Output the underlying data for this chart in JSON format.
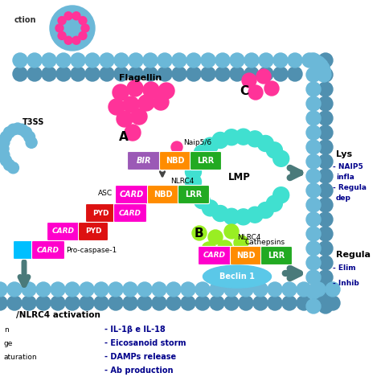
{
  "bg_color": "#ffffff",
  "membrane_color": "#6BB8D8",
  "membrane_dark": "#5090B0",
  "flagellin_color": "#FF3399",
  "cathepsin_color": "#99EE22",
  "lysosome_color": "#40E0D0",
  "arrow_color": "#4a7a7a",
  "text_color": "#00008B",
  "label_color": "#000000",
  "BIR_color": "#9B59B6",
  "NBD_color": "#FF8C00",
  "LRR_color": "#22AA22",
  "CARD_color": "#FF00CC",
  "CARD2_color": "#FF1493",
  "PYD_color": "#DD1111",
  "blue_rect": "#00BFFF",
  "beclin_color": "#5BC8E8",
  "naip_label": "Naip5/6",
  "nlrc4_label": "NLRC4",
  "asc_label": "ASC",
  "procasp_label": "Pro-caspase-1",
  "flagellin_label": "Flagellin",
  "t3ss_label": "T3SS",
  "section_A": "A",
  "section_B": "B",
  "section_C": "C",
  "lmp_label": "LMP",
  "cathepsins_label": "Cathepsins",
  "beclin_label": "Beclin 1",
  "bottom_title": "/NLRC4 activation",
  "bottom_text2": "- IL-1β e IL-18",
  "bottom_text3": "- Eicosanoid storm",
  "bottom_text4": "- DAMPs release",
  "bottom_text5": "- Ab production",
  "bottom_left1": "n",
  "bottom_left2": "ge",
  "bottom_left3": "aturation",
  "right_lys": "Lys",
  "right_naip": "- NAIP5",
  "right_infla": "infla",
  "right_regula": "- Regula",
  "right_dep": "dep",
  "right_regula2": "Regula",
  "right_elim": "- Elim",
  "right_inhib": "- Inhib"
}
